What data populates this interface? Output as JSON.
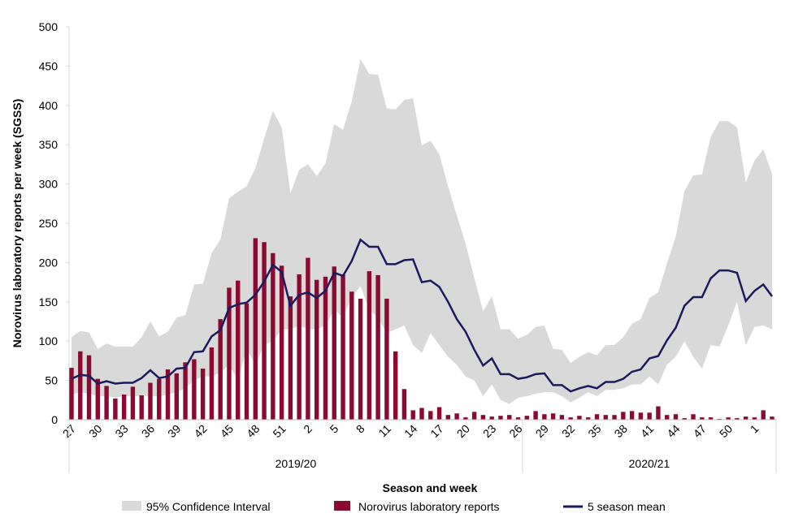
{
  "chart_data": {
    "type": "combo",
    "ylabel": "Norovirus laboratory reports per week (SGSS)",
    "xlabel": "Season and week",
    "seasons": [
      "2019/20",
      "2020/21"
    ],
    "categories": [
      27,
      null,
      null,
      30,
      null,
      null,
      33,
      null,
      null,
      36,
      null,
      null,
      39,
      null,
      null,
      42,
      null,
      null,
      45,
      null,
      null,
      48,
      null,
      null,
      51,
      null,
      null,
      2,
      null,
      null,
      5,
      null,
      null,
      8,
      null,
      null,
      11,
      null,
      null,
      14,
      null,
      null,
      17,
      null,
      null,
      20,
      null,
      null,
      23,
      null,
      null,
      26,
      null,
      null,
      29,
      null,
      null,
      32,
      null,
      null,
      35,
      null,
      null,
      38,
      null,
      null,
      41,
      null,
      null,
      44,
      null,
      null,
      47,
      null,
      null,
      50,
      null,
      null,
      1,
      null,
      null
    ],
    "ylim": [
      0,
      500
    ],
    "yticks": [
      0,
      50,
      100,
      150,
      200,
      250,
      300,
      350,
      400,
      450,
      500
    ],
    "series": [
      {
        "name": "95% Confidence Interval",
        "kind": "band",
        "color": "#d9d9d9",
        "upper": [
          105,
          113,
          111,
          90,
          97,
          93,
          93,
          93,
          105,
          125,
          106,
          112,
          130,
          133,
          172,
          173,
          212,
          229,
          282,
          290,
          297,
          320,
          358,
          393,
          372,
          288,
          318,
          325,
          310,
          326,
          376,
          369,
          405,
          459,
          440,
          439,
          396,
          395,
          407,
          409,
          349,
          355,
          338,
          297,
          260,
          224,
          180,
          138,
          157,
          115,
          115,
          103,
          108,
          118,
          120,
          90,
          89,
          72,
          80,
          86,
          82,
          95,
          95,
          105,
          122,
          128,
          155,
          162,
          199,
          233,
          291,
          311,
          312,
          360,
          380,
          380,
          372,
          302,
          330,
          344,
          313
        ],
        "lower": [
          32,
          35,
          33,
          30,
          30,
          28,
          30,
          30,
          30,
          30,
          30,
          32,
          35,
          40,
          50,
          55,
          55,
          60,
          70,
          50,
          90,
          70,
          95,
          100,
          115,
          115,
          120,
          115,
          115,
          120,
          140,
          130,
          155,
          170,
          140,
          130,
          110,
          115,
          120,
          95,
          85,
          110,
          95,
          80,
          70,
          55,
          50,
          30,
          45,
          25,
          20,
          28,
          30,
          33,
          35,
          35,
          30,
          22,
          28,
          35,
          30,
          38,
          38,
          40,
          45,
          45,
          55,
          45,
          70,
          80,
          100,
          80,
          65,
          95,
          93,
          120,
          150,
          95,
          118,
          120,
          115
        ]
      },
      {
        "name": "Norovirus laboratory reports",
        "kind": "bar",
        "color": "#8b0a32",
        "values": [
          66,
          87,
          82,
          52,
          43,
          27,
          32,
          42,
          31,
          47,
          52,
          64,
          59,
          73,
          77,
          65,
          92,
          128,
          168,
          177,
          148,
          231,
          226,
          212,
          196,
          157,
          185,
          206,
          178,
          182,
          195,
          185,
          163,
          154,
          189,
          184,
          154,
          87,
          39,
          12,
          15,
          11,
          16,
          6,
          8,
          3,
          10,
          6,
          4,
          5,
          6,
          3,
          5,
          11,
          7,
          8,
          6,
          3,
          5,
          3,
          7,
          6,
          6,
          10,
          11,
          9,
          9,
          17,
          6,
          7,
          2,
          7,
          3,
          3,
          1,
          3,
          2,
          4,
          3,
          12,
          4
        ]
      },
      {
        "name": "5 season mean",
        "kind": "line",
        "color": "#1a1a5e",
        "values": [
          52,
          57,
          56,
          46,
          49,
          46,
          47,
          47,
          53,
          63,
          53,
          55,
          65,
          66,
          86,
          87,
          106,
          114,
          142,
          147,
          149,
          159,
          176,
          197,
          188,
          145,
          159,
          162,
          155,
          164,
          187,
          183,
          202,
          229,
          220,
          220,
          198,
          198,
          203,
          204,
          175,
          177,
          169,
          150,
          128,
          112,
          89,
          69,
          78,
          58,
          58,
          52,
          54,
          58,
          59,
          44,
          44,
          36,
          40,
          43,
          40,
          48,
          48,
          52,
          61,
          64,
          78,
          81,
          101,
          117,
          145,
          156,
          156,
          180,
          190,
          190,
          187,
          151,
          164,
          172,
          157
        ]
      }
    ]
  }
}
